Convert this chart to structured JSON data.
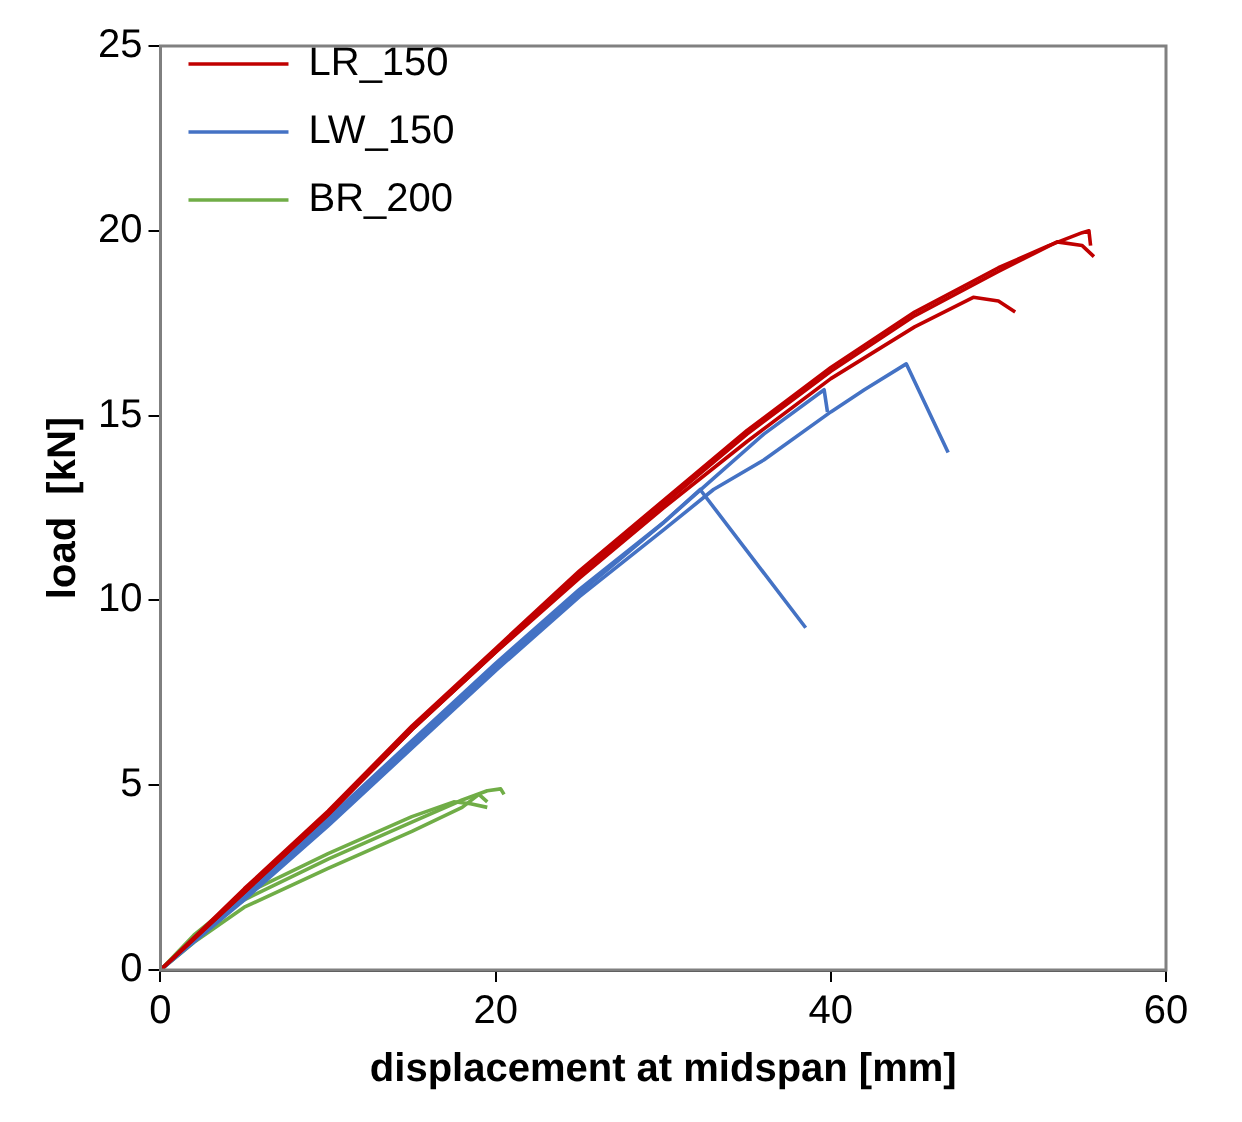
{
  "chart_data": {
    "type": "line",
    "xlabel": "displacement at midspan [mm]",
    "ylabel": "load  [kN]",
    "xlim": [
      0,
      60
    ],
    "ylim": [
      0,
      25
    ],
    "xticks": [
      0,
      20,
      40,
      60
    ],
    "yticks": [
      0,
      5,
      10,
      15,
      20,
      25
    ],
    "grid": false,
    "legend": "top left",
    "marker": "none",
    "line_style": "solid",
    "series": [
      {
        "name": "LR_150",
        "color": "#c00000",
        "x": [
          0,
          5,
          10,
          15,
          20,
          25,
          30,
          35,
          40,
          45,
          50,
          53,
          55,
          55.4,
          55.5
        ],
        "values": [
          0,
          2.2,
          4.3,
          6.6,
          8.7,
          10.8,
          12.7,
          14.6,
          16.3,
          17.8,
          19.0,
          19.6,
          19.95,
          20.0,
          19.6
        ]
      },
      {
        "name": null,
        "color": "#c00000",
        "x": [
          0,
          5,
          10,
          15,
          20,
          25,
          30,
          35,
          40,
          45,
          50,
          53.5,
          55,
          55.7
        ],
        "values": [
          0,
          2.1,
          4.2,
          6.5,
          8.6,
          10.7,
          12.6,
          14.5,
          16.2,
          17.7,
          18.9,
          19.7,
          19.6,
          19.3
        ]
      },
      {
        "name": null,
        "color": "#c00000",
        "x": [
          0,
          5,
          10,
          15,
          20,
          25,
          30,
          35,
          40,
          45,
          48.5,
          50,
          51
        ],
        "values": [
          0,
          2.1,
          4.2,
          6.5,
          8.6,
          10.6,
          12.5,
          14.3,
          16.0,
          17.4,
          18.2,
          18.1,
          17.8
        ]
      },
      {
        "name": "LW_150",
        "color": "#4472c4",
        "x": [
          0,
          5,
          10,
          15,
          20,
          25,
          30,
          32.2,
          38.5
        ],
        "values": [
          0,
          2.0,
          4.1,
          6.2,
          8.3,
          10.3,
          12.1,
          13.0,
          9.26
        ]
      },
      {
        "name": null,
        "color": "#4472c4",
        "x": [
          0,
          5,
          10,
          15,
          20,
          25,
          30,
          33,
          36,
          39.6,
          39.8
        ],
        "values": [
          0,
          2.0,
          4.0,
          6.1,
          8.2,
          10.2,
          12.1,
          13.3,
          14.5,
          15.7,
          15.1
        ]
      },
      {
        "name": null,
        "color": "#4472c4",
        "x": [
          0,
          5,
          10,
          15,
          20,
          25,
          30,
          33,
          36,
          40,
          42,
          44.5,
          47
        ],
        "values": [
          0,
          1.9,
          3.9,
          6.0,
          8.1,
          10.1,
          11.9,
          13.0,
          13.8,
          15.1,
          15.7,
          16.4,
          14.0
        ]
      },
      {
        "name": "BR_200",
        "color": "#70ad47",
        "x": [
          0,
          2,
          5,
          10,
          15,
          18,
          19.5,
          20.3,
          20.5
        ],
        "values": [
          0,
          0.9,
          1.9,
          3.0,
          4.0,
          4.6,
          4.85,
          4.9,
          4.75
        ]
      },
      {
        "name": null,
        "color": "#70ad47",
        "x": [
          0,
          2,
          5,
          10,
          15,
          18,
          19,
          19.5
        ],
        "values": [
          0,
          0.75,
          1.7,
          2.75,
          3.75,
          4.4,
          4.75,
          4.55
        ]
      },
      {
        "name": null,
        "color": "#70ad47",
        "x": [
          0,
          2,
          5,
          10,
          15,
          17.5,
          18.5,
          19.5
        ],
        "values": [
          0,
          0.95,
          2.05,
          3.15,
          4.15,
          4.55,
          4.5,
          4.4
        ]
      }
    ]
  }
}
